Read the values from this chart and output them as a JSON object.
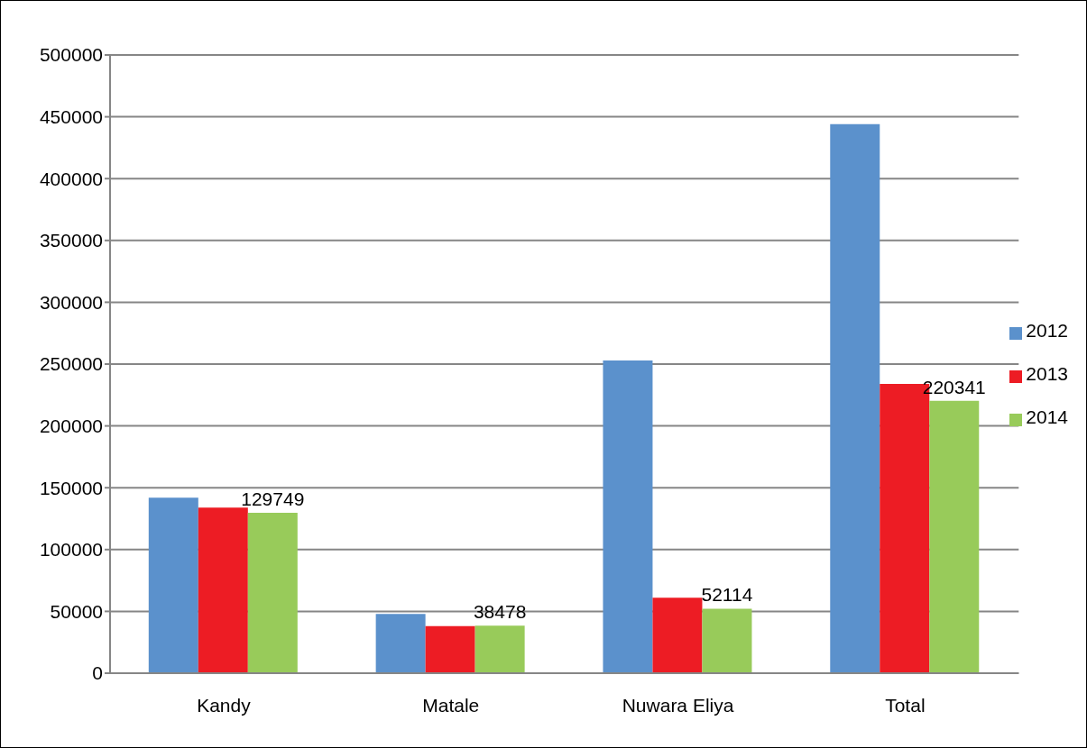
{
  "chart_data": {
    "type": "bar",
    "categories": [
      "Kandy",
      "Matale",
      "Nuwara Eliya",
      "Total"
    ],
    "series": [
      {
        "name": "2012",
        "color": "#5b91cc",
        "values": [
          142000,
          48000,
          253000,
          444000
        ]
      },
      {
        "name": "2013",
        "color": "#ed1c24",
        "values": [
          134000,
          38000,
          61000,
          234000
        ]
      },
      {
        "name": "2014",
        "color": "#98cb5a",
        "values": [
          129749,
          38478,
          52114,
          220341
        ],
        "value_labels": [
          "129749",
          "38478",
          "52114",
          "220341"
        ]
      }
    ],
    "ylim": [
      0,
      500000
    ],
    "yticks": [
      0,
      50000,
      100000,
      150000,
      200000,
      250000,
      300000,
      350000,
      400000,
      450000,
      500000
    ],
    "grid": "y",
    "legend": "right"
  }
}
